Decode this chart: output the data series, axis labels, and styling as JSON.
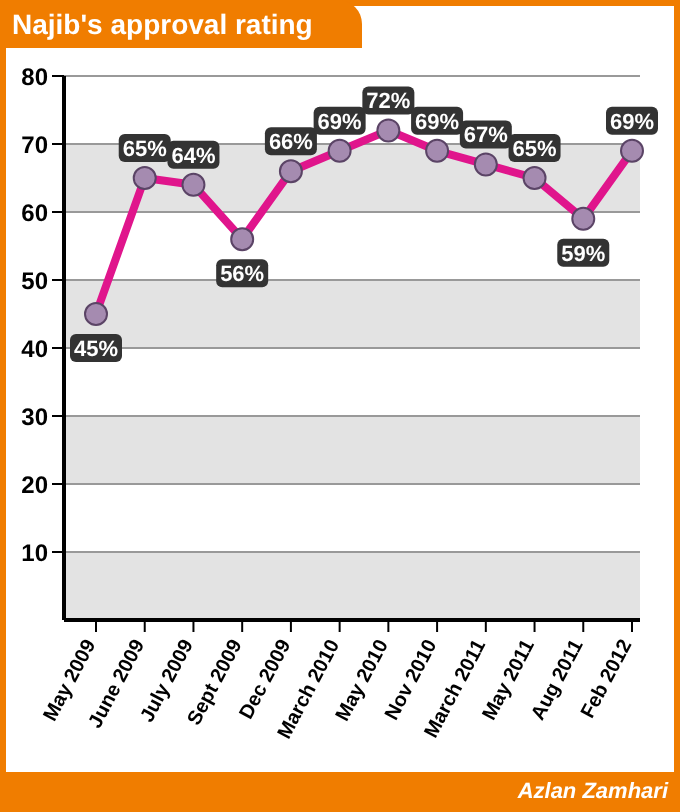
{
  "chart_data": {
    "type": "line",
    "title": "Najib's approval rating",
    "annotations": [
      "Azlan Zamhari"
    ],
    "categories": [
      "May 2009",
      "June 2009",
      "July 2009",
      "Sept 2009",
      "Dec 2009",
      "March 2010",
      "May 2010",
      "Nov 2010",
      "March 2011",
      "May 2011",
      "Aug 2011",
      "Feb 2012"
    ],
    "series": [
      {
        "color": "#e0158c",
        "values": [
          45,
          65,
          64,
          56,
          66,
          69,
          72,
          69,
          67,
          65,
          59,
          69
        ],
        "value_labels": [
          "45%",
          "65%",
          "64%",
          "56%",
          "66%",
          "69%",
          "72%",
          "69%",
          "67%",
          "65%",
          "59%",
          "69%"
        ]
      }
    ],
    "ylim": [
      0,
      80
    ],
    "yticks": [
      10,
      20,
      30,
      40,
      50,
      60,
      70,
      80
    ],
    "grid": "y",
    "legend": false,
    "marker": "circle",
    "line_style": "solid"
  }
}
